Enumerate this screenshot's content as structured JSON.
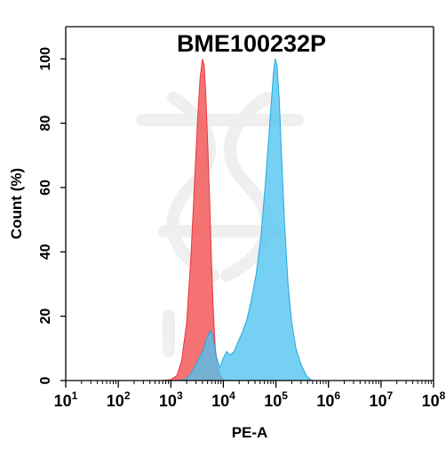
{
  "chart_data": {
    "type": "area",
    "title": "BME100232P",
    "xlabel": "PE-A",
    "ylabel": "Count  (%)",
    "xscale": "log",
    "xlim": [
      10,
      100000000
    ],
    "ylim": [
      0,
      110
    ],
    "y_ticks": [
      0,
      20,
      40,
      60,
      80,
      100
    ],
    "x_ticks": [
      {
        "base": "10",
        "exp": "1",
        "value": 10
      },
      {
        "base": "10",
        "exp": "2",
        "value": 100
      },
      {
        "base": "10",
        "exp": "3",
        "value": 1000
      },
      {
        "base": "10",
        "exp": "4",
        "value": 10000
      },
      {
        "base": "10",
        "exp": "5",
        "value": 100000
      },
      {
        "base": "10",
        "exp": "6",
        "value": 1000000
      },
      {
        "base": "10",
        "exp": "7",
        "value": 10000000
      },
      {
        "base": "10",
        "exp": "8",
        "value": 100000000
      }
    ],
    "grid": false,
    "series": [
      {
        "fill": "#f35b5b",
        "stroke": "#e8373d",
        "opacity": 0.85,
        "points": [
          [
            700,
            0
          ],
          [
            1000,
            0.3
          ],
          [
            1300,
            1.5
          ],
          [
            1600,
            6
          ],
          [
            2000,
            18
          ],
          [
            2400,
            38
          ],
          [
            2800,
            60
          ],
          [
            3200,
            80
          ],
          [
            3600,
            94
          ],
          [
            4000,
            100
          ],
          [
            4300,
            98
          ],
          [
            4600,
            90
          ],
          [
            5000,
            75
          ],
          [
            5500,
            55
          ],
          [
            6000,
            35
          ],
          [
            6500,
            20
          ],
          [
            7000,
            10
          ],
          [
            8000,
            3
          ],
          [
            9500,
            0.5
          ],
          [
            11000,
            0
          ]
        ]
      },
      {
        "fill": "#4fc3ef",
        "stroke": "#22a9e0",
        "opacity": 0.78,
        "points": [
          [
            1500,
            0
          ],
          [
            2000,
            0.5
          ],
          [
            2600,
            3
          ],
          [
            3200,
            6
          ],
          [
            4000,
            9
          ],
          [
            4800,
            13
          ],
          [
            5600,
            15.5
          ],
          [
            6300,
            14
          ],
          [
            7200,
            8
          ],
          [
            8500,
            4
          ],
          [
            10000,
            7
          ],
          [
            11500,
            9
          ],
          [
            13500,
            8
          ],
          [
            16000,
            9
          ],
          [
            19000,
            12
          ],
          [
            23000,
            15
          ],
          [
            28000,
            19
          ],
          [
            34000,
            25
          ],
          [
            42000,
            33
          ],
          [
            52000,
            45
          ],
          [
            62000,
            60
          ],
          [
            72000,
            74
          ],
          [
            82000,
            87
          ],
          [
            90000,
            96
          ],
          [
            97000,
            100
          ],
          [
            105000,
            98
          ],
          [
            115000,
            88
          ],
          [
            128000,
            70
          ],
          [
            145000,
            50
          ],
          [
            170000,
            30
          ],
          [
            200000,
            18
          ],
          [
            240000,
            10
          ],
          [
            300000,
            5
          ],
          [
            380000,
            1.5
          ],
          [
            480000,
            0
          ]
        ]
      }
    ]
  }
}
